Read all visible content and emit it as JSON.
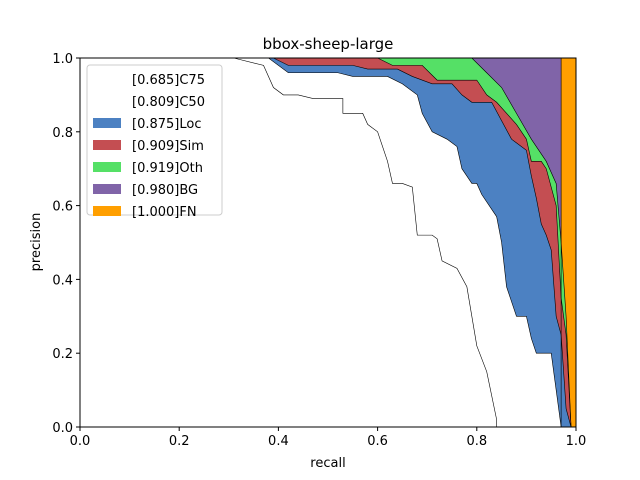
{
  "chart_data": {
    "type": "area",
    "title": "bbox-sheep-large",
    "xlabel": "recall",
    "ylabel": "precision",
    "xlim": [
      0.0,
      1.0
    ],
    "ylim": [
      0.0,
      1.0
    ],
    "xticks": [
      "0.0",
      "0.2",
      "0.4",
      "0.6",
      "0.8",
      "1.0"
    ],
    "yticks": [
      "0.0",
      "0.2",
      "0.4",
      "0.6",
      "0.8",
      "1.0"
    ],
    "grid": false,
    "legend_position": "upper-left",
    "series": [
      {
        "name": "[0.685]C75",
        "color": "#ffffff",
        "points": [
          [
            0.0,
            1.0
          ],
          [
            0.31,
            1.0
          ],
          [
            0.37,
            0.98
          ],
          [
            0.39,
            0.92
          ],
          [
            0.41,
            0.9
          ],
          [
            0.44,
            0.9
          ],
          [
            0.47,
            0.89
          ],
          [
            0.53,
            0.89
          ],
          [
            0.53,
            0.85
          ],
          [
            0.57,
            0.85
          ],
          [
            0.58,
            0.82
          ],
          [
            0.6,
            0.8
          ],
          [
            0.62,
            0.72
          ],
          [
            0.63,
            0.66
          ],
          [
            0.65,
            0.66
          ],
          [
            0.67,
            0.65
          ],
          [
            0.68,
            0.52
          ],
          [
            0.71,
            0.52
          ],
          [
            0.72,
            0.51
          ],
          [
            0.73,
            0.45
          ],
          [
            0.76,
            0.43
          ],
          [
            0.78,
            0.38
          ],
          [
            0.79,
            0.3
          ],
          [
            0.8,
            0.22
          ],
          [
            0.82,
            0.15
          ],
          [
            0.84,
            0.02
          ],
          [
            0.84,
            0.0
          ]
        ]
      },
      {
        "name": "[0.809]C50",
        "color": "#ffffff",
        "points": [
          [
            0.0,
            1.0
          ],
          [
            0.38,
            1.0
          ],
          [
            0.42,
            0.96
          ],
          [
            0.52,
            0.96
          ],
          [
            0.55,
            0.95
          ],
          [
            0.62,
            0.95
          ],
          [
            0.65,
            0.93
          ],
          [
            0.68,
            0.9
          ],
          [
            0.69,
            0.85
          ],
          [
            0.71,
            0.8
          ],
          [
            0.74,
            0.78
          ],
          [
            0.76,
            0.76
          ],
          [
            0.77,
            0.7
          ],
          [
            0.78,
            0.68
          ],
          [
            0.79,
            0.66
          ],
          [
            0.8,
            0.66
          ],
          [
            0.81,
            0.63
          ],
          [
            0.84,
            0.57
          ],
          [
            0.85,
            0.5
          ],
          [
            0.86,
            0.38
          ],
          [
            0.88,
            0.3
          ],
          [
            0.9,
            0.3
          ],
          [
            0.91,
            0.24
          ],
          [
            0.92,
            0.2
          ],
          [
            0.95,
            0.2
          ],
          [
            0.96,
            0.1
          ],
          [
            0.97,
            0.0
          ]
        ]
      },
      {
        "name": "[0.875]Loc",
        "color": "#4c81c2",
        "points": [
          [
            0.0,
            1.0
          ],
          [
            0.39,
            1.0
          ],
          [
            0.42,
            0.98
          ],
          [
            0.55,
            0.98
          ],
          [
            0.58,
            0.97
          ],
          [
            0.64,
            0.97
          ],
          [
            0.67,
            0.95
          ],
          [
            0.71,
            0.93
          ],
          [
            0.75,
            0.93
          ],
          [
            0.77,
            0.9
          ],
          [
            0.79,
            0.88
          ],
          [
            0.83,
            0.88
          ],
          [
            0.85,
            0.83
          ],
          [
            0.87,
            0.78
          ],
          [
            0.88,
            0.77
          ],
          [
            0.9,
            0.75
          ],
          [
            0.91,
            0.68
          ],
          [
            0.92,
            0.62
          ],
          [
            0.93,
            0.55
          ],
          [
            0.94,
            0.52
          ],
          [
            0.95,
            0.48
          ],
          [
            0.96,
            0.3
          ],
          [
            0.97,
            0.25
          ],
          [
            0.98,
            0.05
          ],
          [
            0.99,
            0.0
          ]
        ]
      },
      {
        "name": "[0.909]Sim",
        "color": "#c44e52",
        "points": [
          [
            0.0,
            1.0
          ],
          [
            0.6,
            1.0
          ],
          [
            0.63,
            0.98
          ],
          [
            0.69,
            0.98
          ],
          [
            0.72,
            0.94
          ],
          [
            0.8,
            0.94
          ],
          [
            0.82,
            0.9
          ],
          [
            0.84,
            0.88
          ],
          [
            0.86,
            0.85
          ],
          [
            0.88,
            0.82
          ],
          [
            0.9,
            0.78
          ],
          [
            0.91,
            0.72
          ],
          [
            0.93,
            0.72
          ],
          [
            0.94,
            0.7
          ],
          [
            0.96,
            0.6
          ],
          [
            0.97,
            0.35
          ],
          [
            0.98,
            0.25
          ],
          [
            0.99,
            0.0
          ]
        ]
      },
      {
        "name": "[0.919]Oth",
        "color": "#55e066",
        "points": [
          [
            0.0,
            1.0
          ],
          [
            0.79,
            1.0
          ],
          [
            0.82,
            0.96
          ],
          [
            0.85,
            0.92
          ],
          [
            0.88,
            0.85
          ],
          [
            0.91,
            0.78
          ],
          [
            0.94,
            0.72
          ],
          [
            0.96,
            0.66
          ],
          [
            0.97,
            0.5
          ],
          [
            0.98,
            0.3
          ],
          [
            0.99,
            0.0
          ]
        ]
      },
      {
        "name": "[0.980]BG",
        "color": "#8064a8",
        "points": [
          [
            0.0,
            1.0
          ],
          [
            0.97,
            1.0
          ],
          [
            0.97,
            0.0
          ],
          [
            0.99,
            0.0
          ]
        ]
      },
      {
        "name": "[1.000]FN",
        "color": "#ff9f00",
        "points": [
          [
            0.0,
            1.0
          ],
          [
            1.0,
            1.0
          ],
          [
            1.0,
            0.0
          ]
        ]
      }
    ]
  }
}
